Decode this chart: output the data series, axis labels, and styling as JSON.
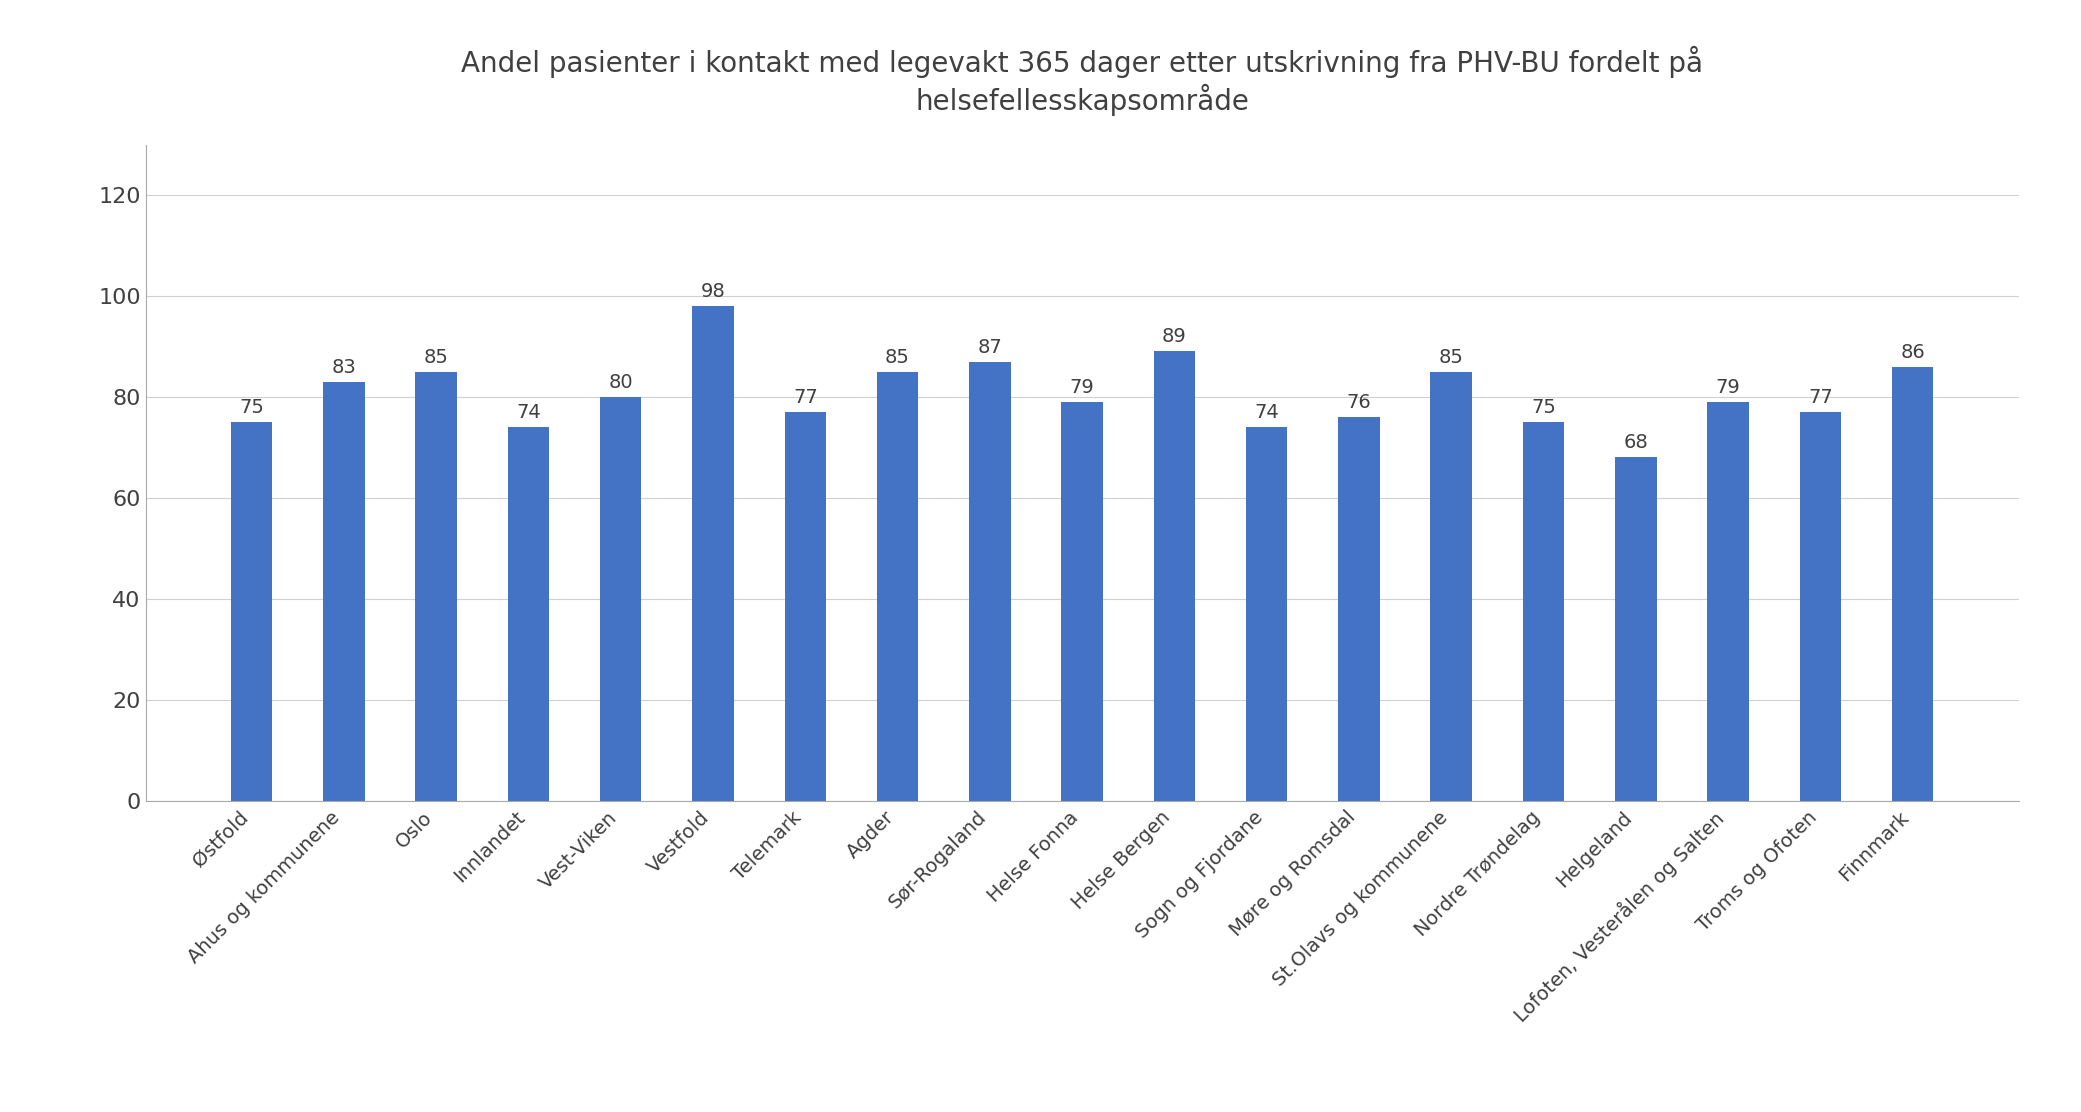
{
  "title": "Andel pasienter i kontakt med legevakt 365 dager etter utskrivning fra PHV-BU fordelt på\nhelsefellesskapsområde",
  "categories": [
    "Østfold",
    "Ahus og kommunene",
    "Oslo",
    "Innlandet",
    "Vest-Viken",
    "Vestfold",
    "Telemark",
    "Agder",
    "Sør-Rogaland",
    "Helse Fonna",
    "Helse Bergen",
    "Sogn og Fjordane",
    "Møre og Romsdal",
    "St.Olavs og kommunene",
    "Nordre Trøndelag",
    "Helgeland",
    "Lofoten, Vesterålen og Salten",
    "Troms og Ofoten",
    "Finnmark"
  ],
  "values": [
    75,
    83,
    85,
    74,
    80,
    98,
    77,
    85,
    87,
    79,
    89,
    74,
    76,
    85,
    75,
    68,
    79,
    77,
    86
  ],
  "bar_color": "#4472c4",
  "ylim": [
    0,
    130
  ],
  "yticks": [
    0,
    20,
    40,
    60,
    80,
    100,
    120
  ],
  "title_fontsize": 20,
  "tick_label_fontsize": 14,
  "value_label_fontsize": 14,
  "ytick_fontsize": 16,
  "background_color": "#ffffff",
  "grid_color": "#d0d0d0",
  "spine_color": "#aaaaaa",
  "text_color": "#404040"
}
